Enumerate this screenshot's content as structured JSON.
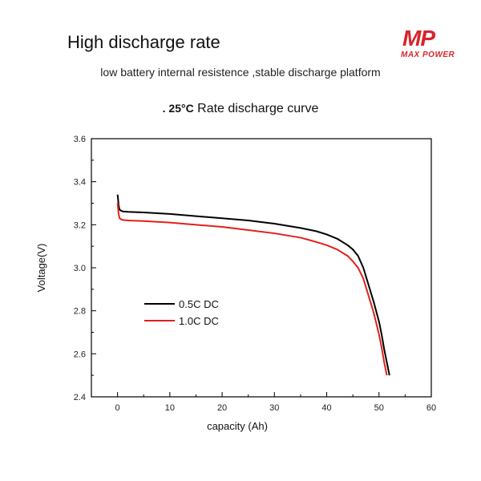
{
  "header": {
    "title": "High discharge rate",
    "subtitle": "low battery internal resistence ,stable discharge platform",
    "chart_title_prefix": ". 25°C",
    "chart_title_suffix": " Rate discharge curve"
  },
  "logo": {
    "mark": "MP",
    "text": "MAX POWER",
    "color": "#d9232a"
  },
  "chart_data": {
    "type": "line",
    "xlabel": "capacity  (Ah)",
    "ylabel": "Voltage(V)",
    "xlim": [
      -5,
      60
    ],
    "ylim": [
      2.4,
      3.6
    ],
    "xticks": [
      0,
      10,
      20,
      30,
      40,
      50,
      60
    ],
    "yticks": [
      2.4,
      2.6,
      2.8,
      3.0,
      3.2,
      3.4,
      3.6
    ],
    "ytick_labels": [
      "2.4",
      "2.6",
      "2.8",
      "3.0",
      "3.2",
      "3.4",
      "3.6"
    ],
    "legend_position": "lower-left",
    "series": [
      {
        "name": "0.5C DC",
        "color": "#000000",
        "x": [
          0,
          0.1,
          0.2,
          0.4,
          0.7,
          1,
          2,
          5,
          10,
          15,
          20,
          25,
          30,
          35,
          38,
          40,
          42,
          44,
          45,
          46,
          47,
          48,
          49,
          50,
          50.5,
          51,
          51.5,
          52
        ],
        "y": [
          3.34,
          3.32,
          3.29,
          3.27,
          3.265,
          3.262,
          3.26,
          3.257,
          3.25,
          3.24,
          3.23,
          3.22,
          3.205,
          3.185,
          3.17,
          3.155,
          3.135,
          3.105,
          3.085,
          3.055,
          3.0,
          2.92,
          2.84,
          2.75,
          2.69,
          2.62,
          2.56,
          2.5
        ]
      },
      {
        "name": "1.0C DC",
        "color": "#e0201a",
        "x": [
          0,
          0.1,
          0.2,
          0.4,
          0.7,
          1,
          2,
          5,
          10,
          15,
          20,
          25,
          30,
          35,
          38,
          40,
          42,
          44,
          45,
          46,
          47,
          48,
          49,
          49.5,
          50,
          50.5,
          51,
          51.5
        ],
        "y": [
          3.3,
          3.28,
          3.25,
          3.23,
          3.225,
          3.222,
          3.22,
          3.217,
          3.21,
          3.2,
          3.19,
          3.175,
          3.16,
          3.14,
          3.12,
          3.105,
          3.085,
          3.055,
          3.03,
          3.0,
          2.95,
          2.87,
          2.79,
          2.74,
          2.69,
          2.63,
          2.56,
          2.5
        ]
      }
    ]
  }
}
